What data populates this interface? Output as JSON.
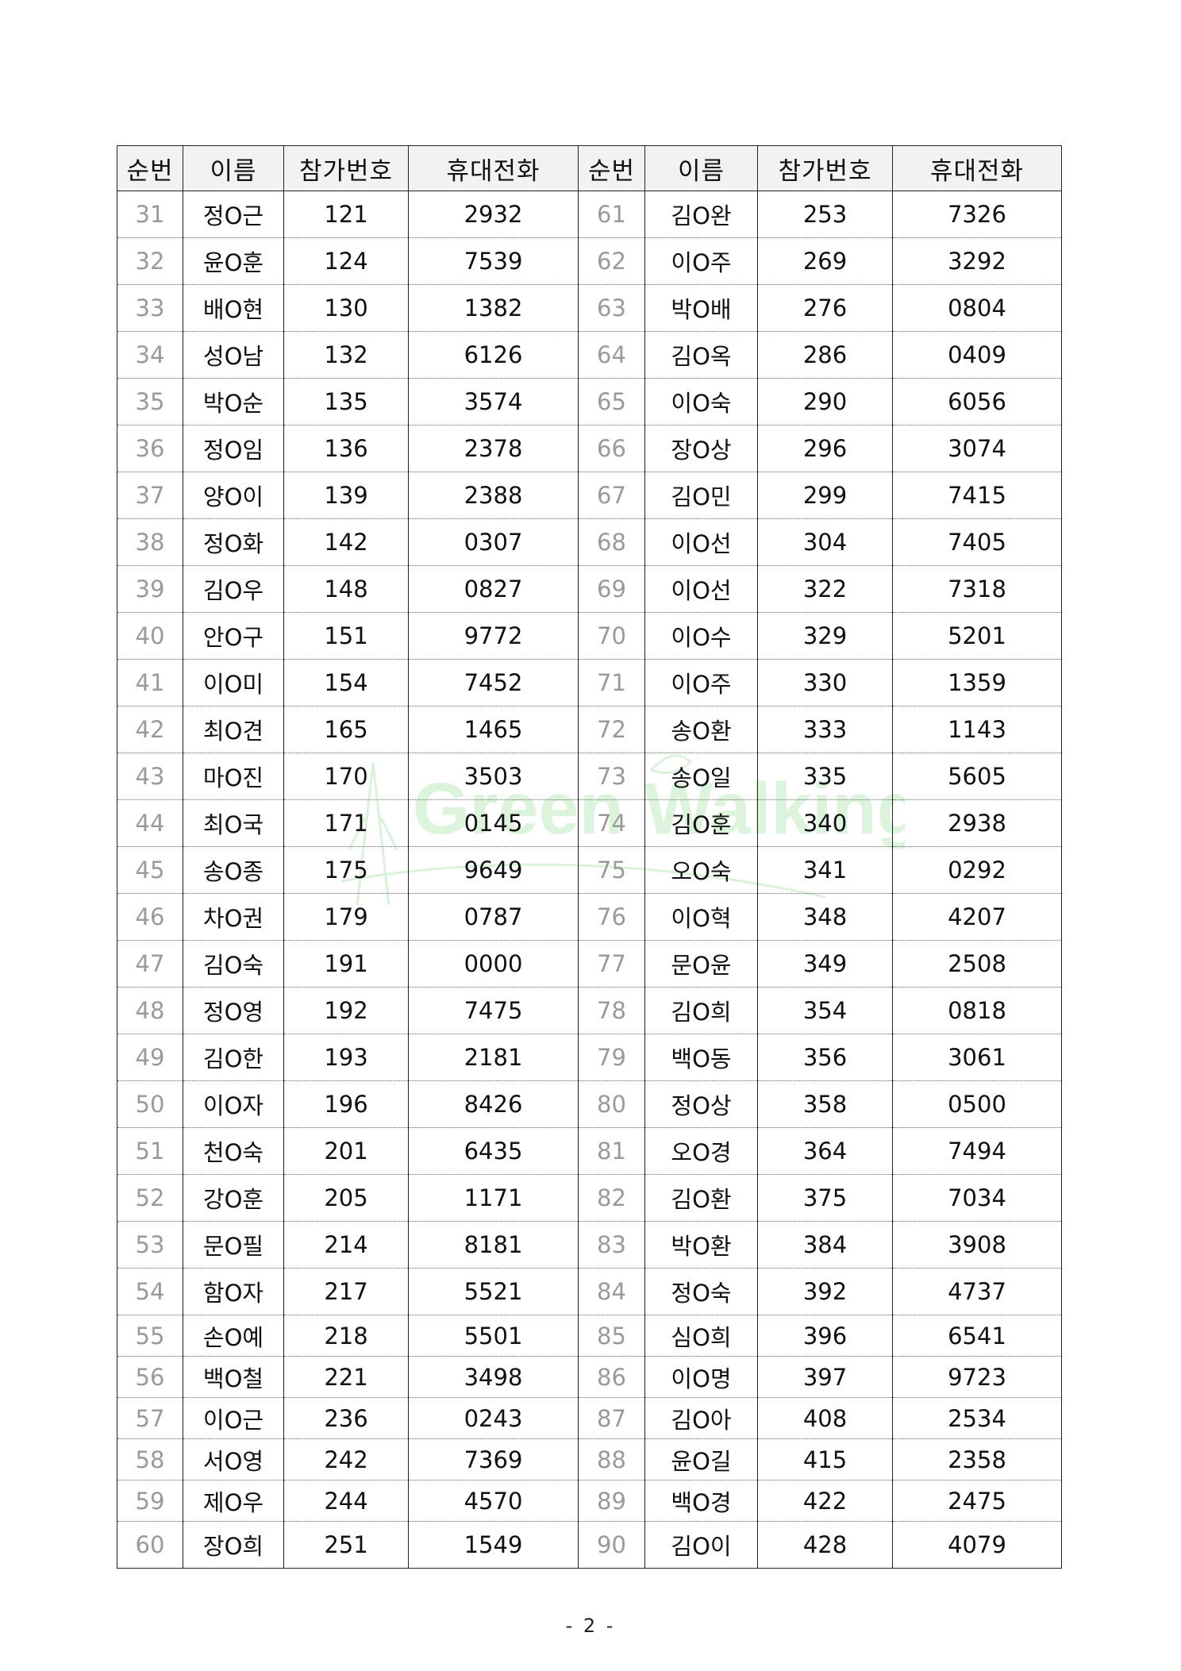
{
  "watermark": {
    "text": "Green Walking",
    "color": "#8fd98f"
  },
  "headers": [
    "순번",
    "이름",
    "참가번호",
    "휴대전화",
    "순번",
    "이름",
    "참가번호",
    "휴대전화"
  ],
  "rows": [
    [
      [
        "31",
        "정O근",
        "121",
        "2932"
      ],
      [
        "61",
        "김O완",
        "253",
        "7326"
      ]
    ],
    [
      [
        "32",
        "윤O훈",
        "124",
        "7539"
      ],
      [
        "62",
        "이O주",
        "269",
        "3292"
      ]
    ],
    [
      [
        "33",
        "배O현",
        "130",
        "1382"
      ],
      [
        "63",
        "박O배",
        "276",
        "0804"
      ]
    ],
    [
      [
        "34",
        "성O남",
        "132",
        "6126"
      ],
      [
        "64",
        "김O옥",
        "286",
        "0409"
      ]
    ],
    [
      [
        "35",
        "박O순",
        "135",
        "3574"
      ],
      [
        "65",
        "이O숙",
        "290",
        "6056"
      ]
    ],
    [
      [
        "36",
        "정O임",
        "136",
        "2378"
      ],
      [
        "66",
        "장O상",
        "296",
        "3074"
      ]
    ],
    [
      [
        "37",
        "양O이",
        "139",
        "2388"
      ],
      [
        "67",
        "김O민",
        "299",
        "7415"
      ]
    ],
    [
      [
        "38",
        "정O화",
        "142",
        "0307"
      ],
      [
        "68",
        "이O선",
        "304",
        "7405"
      ]
    ],
    [
      [
        "39",
        "김O우",
        "148",
        "0827"
      ],
      [
        "69",
        "이O선",
        "322",
        "7318"
      ]
    ],
    [
      [
        "40",
        "안O구",
        "151",
        "9772"
      ],
      [
        "70",
        "이O수",
        "329",
        "5201"
      ]
    ],
    [
      [
        "41",
        "이O미",
        "154",
        "7452"
      ],
      [
        "71",
        "이O주",
        "330",
        "1359"
      ]
    ],
    [
      [
        "42",
        "최O견",
        "165",
        "1465"
      ],
      [
        "72",
        "송O환",
        "333",
        "1143"
      ]
    ],
    [
      [
        "43",
        "마O진",
        "170",
        "3503"
      ],
      [
        "73",
        "송O일",
        "335",
        "5605"
      ]
    ],
    [
      [
        "44",
        "최O국",
        "171",
        "0145"
      ],
      [
        "74",
        "김O훈",
        "340",
        "2938"
      ]
    ],
    [
      [
        "45",
        "송O종",
        "175",
        "9649"
      ],
      [
        "75",
        "오O숙",
        "341",
        "0292"
      ]
    ],
    [
      [
        "46",
        "차O권",
        "179",
        "0787"
      ],
      [
        "76",
        "이O혁",
        "348",
        "4207"
      ]
    ],
    [
      [
        "47",
        "김O숙",
        "191",
        "0000"
      ],
      [
        "77",
        "문O윤",
        "349",
        "2508"
      ]
    ],
    [
      [
        "48",
        "정O영",
        "192",
        "7475"
      ],
      [
        "78",
        "김O희",
        "354",
        "0818"
      ]
    ],
    [
      [
        "49",
        "김O한",
        "193",
        "2181"
      ],
      [
        "79",
        "백O동",
        "356",
        "3061"
      ]
    ],
    [
      [
        "50",
        "이O자",
        "196",
        "8426"
      ],
      [
        "80",
        "정O상",
        "358",
        "0500"
      ]
    ],
    [
      [
        "51",
        "천O숙",
        "201",
        "6435"
      ],
      [
        "81",
        "오O경",
        "364",
        "7494"
      ]
    ],
    [
      [
        "52",
        "강O훈",
        "205",
        "1171"
      ],
      [
        "82",
        "김O환",
        "375",
        "7034"
      ]
    ],
    [
      [
        "53",
        "문O필",
        "214",
        "8181"
      ],
      [
        "83",
        "박O환",
        "384",
        "3908"
      ]
    ],
    [
      [
        "54",
        "함O자",
        "217",
        "5521"
      ],
      [
        "84",
        "정O숙",
        "392",
        "4737"
      ]
    ],
    [
      [
        "55",
        "손O예",
        "218",
        "5501"
      ],
      [
        "85",
        "심O희",
        "396",
        "6541"
      ]
    ],
    [
      [
        "56",
        "백O철",
        "221",
        "3498"
      ],
      [
        "86",
        "이O명",
        "397",
        "9723"
      ]
    ],
    [
      [
        "57",
        "이O근",
        "236",
        "0243"
      ],
      [
        "87",
        "김O아",
        "408",
        "2534"
      ]
    ],
    [
      [
        "58",
        "서O영",
        "242",
        "7369"
      ],
      [
        "88",
        "윤O길",
        "415",
        "2358"
      ]
    ],
    [
      [
        "59",
        "제O우",
        "244",
        "4570"
      ],
      [
        "89",
        "백O경",
        "422",
        "2475"
      ]
    ],
    [
      [
        "60",
        "장O희",
        "251",
        "1549"
      ],
      [
        "90",
        "김O이",
        "428",
        "4079"
      ]
    ]
  ],
  "page_number": "- 2 -"
}
